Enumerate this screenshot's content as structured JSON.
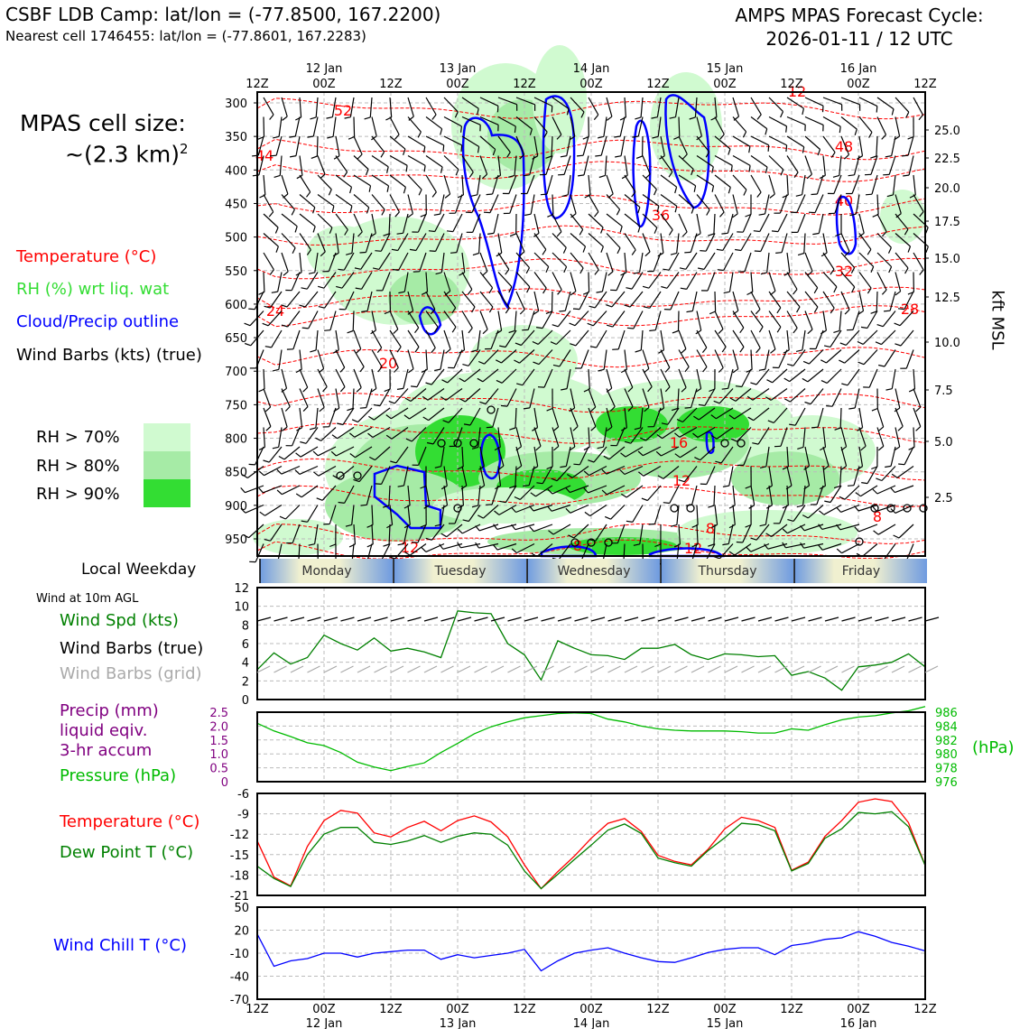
{
  "header": {
    "title_line1": "CSBF LDB Camp: lat/lon = (-77.8500, 167.2200)",
    "title_line2": "Nearest cell 1746455: lat/lon = (-77.8601, 167.2283)",
    "cycle_line1": "AMPS MPAS Forecast Cycle:",
    "cycle_line2": "2026-01-11 / 12 UTC"
  },
  "side_panel": {
    "cell_size_label": "MPAS cell size:",
    "cell_size_value": "~(2.3 km)",
    "cell_size_sup": "2",
    "legend_temperature": "Temperature (°C)",
    "legend_rh": "RH (%) wrt liq. wat",
    "legend_cloud": "Cloud/Precip outline",
    "legend_wind": "Wind Barbs (kts) (true)",
    "rh_70": "RH > 70%",
    "rh_80": "RH > 80%",
    "rh_90": "RH > 90%",
    "local_weekday": "Local Weekday",
    "wind_10m": "Wind at 10m AGL",
    "wind_spd": "Wind Spd (kts)",
    "wind_barbs_true": "Wind Barbs (true)",
    "wind_barbs_grid": "Wind Barbs (grid)",
    "precip_1": "Precip (mm)",
    "precip_2": "liquid eqiv.",
    "precip_3": "3-hr accum",
    "pressure": "Pressure (hPa)",
    "temperature": "Temperature (°C)",
    "dewpoint": "Dew Point T (°C)",
    "wind_chill": "Wind Chill T (°C)",
    "kft_msl": "kft MSL",
    "hpa_unit": "(hPa)"
  },
  "colors": {
    "temp": "#ff0000",
    "rh_label": "#33dd33",
    "cloud": "#0000ff",
    "rh70": "#d0fad0",
    "rh80": "#a6eba6",
    "rh90": "#33dd33",
    "wind_spd": "#008000",
    "grid_barb": "#aaaaaa",
    "precip": "#800080",
    "pressure": "#00bb00",
    "dewpoint": "#008000",
    "windchill": "#0000ff"
  },
  "chart_data": [
    {
      "type": "contour",
      "name": "cross-section",
      "x": [
        "12Z",
        "00Z",
        "12Z",
        "00Z",
        "12Z",
        "00Z",
        "12Z",
        "00Z",
        "12Z",
        "00Z",
        "12Z"
      ],
      "top_dates": [
        "12 Jan",
        "13 Jan",
        "14 Jan",
        "15 Jan",
        "16 Jan"
      ],
      "y_pressure_ticks": [
        300,
        350,
        400,
        450,
        500,
        550,
        600,
        650,
        700,
        750,
        800,
        850,
        900,
        950
      ],
      "y_kft_ticks": [
        "25.0",
        "22.5",
        "20.0",
        "17.5",
        "15.0",
        "12.5",
        "10.0",
        "7.5",
        "5.0",
        "2.5"
      ],
      "temperature_contour_labels": [
        "52",
        "48",
        "44",
        "40",
        "36",
        "32",
        "28",
        "24",
        "20",
        "16",
        "12",
        "12",
        "8",
        "8",
        "8",
        "12",
        "12"
      ],
      "ylim": [
        300,
        980
      ]
    },
    {
      "type": "bar-strip",
      "name": "weekday",
      "days": [
        "Monday",
        "Tuesday",
        "Wednesday",
        "Thursday",
        "Friday"
      ]
    },
    {
      "type": "line",
      "name": "wind-10m",
      "ylim": [
        0,
        12
      ],
      "y_ticks": [
        "0",
        "2",
        "4",
        "6",
        "8",
        "10",
        "12"
      ],
      "series": [
        {
          "name": "Wind Spd (kts)",
          "values": [
            3.2,
            5.0,
            3.8,
            4.5,
            6.9,
            6.0,
            5.3,
            6.6,
            5.2,
            5.5,
            5.1,
            4.5,
            9.5,
            9.3,
            9.2,
            6.0,
            4.8,
            2.1,
            6.3,
            5.5,
            4.8,
            4.7,
            4.3,
            5.5,
            5.5,
            5.9,
            4.8,
            4.3,
            4.9,
            4.8,
            4.6,
            4.7,
            2.6,
            3.0,
            2.3,
            1.0,
            3.5,
            3.7,
            4.0,
            4.9,
            3.5
          ]
        }
      ]
    },
    {
      "type": "line",
      "name": "precip-pressure",
      "y_left_ticks": [
        "0",
        "0.5",
        "1.0",
        "1.5",
        "2.0",
        "2.5"
      ],
      "y_right_ticks": [
        "976",
        "978",
        "980",
        "982",
        "984",
        "986"
      ],
      "ylim_precip": [
        0,
        2.5
      ],
      "ylim_pressure": [
        976,
        986
      ],
      "series": [
        {
          "name": "Pressure (hPa)",
          "values": [
            984.4,
            983.3,
            982.5,
            981.6,
            981.2,
            980.2,
            978.8,
            978.1,
            977.6,
            978.2,
            978.7,
            980.2,
            981.5,
            982.9,
            983.9,
            984.6,
            985.2,
            985.5,
            985.8,
            985.9,
            985.8,
            985.0,
            984.6,
            984.0,
            983.6,
            983.4,
            983.3,
            983.3,
            983.3,
            983.2,
            983.0,
            983.0,
            983.6,
            983.4,
            984.2,
            984.9,
            985.3,
            985.5,
            985.9,
            986.2,
            986.8
          ]
        }
      ]
    },
    {
      "type": "line",
      "name": "temp-dewpoint",
      "ylim": [
        -21,
        -6
      ],
      "y_ticks": [
        "-21",
        "-18",
        "-15",
        "-12",
        "-9",
        "-6"
      ],
      "series": [
        {
          "name": "Temperature (°C)",
          "values": [
            -13.0,
            -18.3,
            -19.6,
            -13.8,
            -10.0,
            -8.5,
            -8.9,
            -11.8,
            -12.4,
            -11.0,
            -10.1,
            -11.5,
            -10.0,
            -9.3,
            -10.2,
            -12.4,
            -16.5,
            -20.0,
            -17.5,
            -15.2,
            -12.6,
            -10.4,
            -9.7,
            -11.6,
            -15.1,
            -16.0,
            -16.5,
            -14.2,
            -11.2,
            -9.5,
            -10.0,
            -11.0,
            -17.3,
            -16.1,
            -12.3,
            -10.0,
            -7.3,
            -6.8,
            -7.2,
            -10.3,
            -16.6
          ]
        },
        {
          "name": "Dew Point T (°C)",
          "values": [
            -16.7,
            -18.5,
            -19.7,
            -15.0,
            -12.0,
            -11.0,
            -11.0,
            -13.2,
            -13.5,
            -13.0,
            -12.2,
            -13.2,
            -12.3,
            -11.8,
            -12.0,
            -13.6,
            -17.4,
            -20.0,
            -17.9,
            -15.7,
            -13.6,
            -11.4,
            -10.5,
            -11.9,
            -15.5,
            -16.2,
            -16.7,
            -14.4,
            -12.5,
            -10.4,
            -10.6,
            -11.5,
            -17.4,
            -16.3,
            -12.6,
            -11.2,
            -8.8,
            -9.0,
            -8.7,
            -10.9,
            -16.6
          ]
        }
      ]
    },
    {
      "type": "line",
      "name": "wind-chill",
      "ylim": [
        -70,
        50
      ],
      "y_ticks": [
        "-70",
        "-40",
        "-10",
        "20",
        "50"
      ],
      "series": [
        {
          "name": "Wind Chill T (°C)",
          "values": [
            15,
            -27,
            -20,
            -17,
            -10,
            -10,
            -15,
            -10,
            -8,
            -6,
            -6,
            -18,
            -12,
            -16,
            -13,
            -10,
            -5,
            -33,
            -20,
            -10,
            -6,
            -3,
            -10,
            -16,
            -21,
            -22,
            -16,
            -9,
            -5,
            -3,
            -3,
            -12,
            0,
            3,
            8,
            10,
            18,
            12,
            4,
            -1,
            -7
          ]
        }
      ]
    }
  ]
}
